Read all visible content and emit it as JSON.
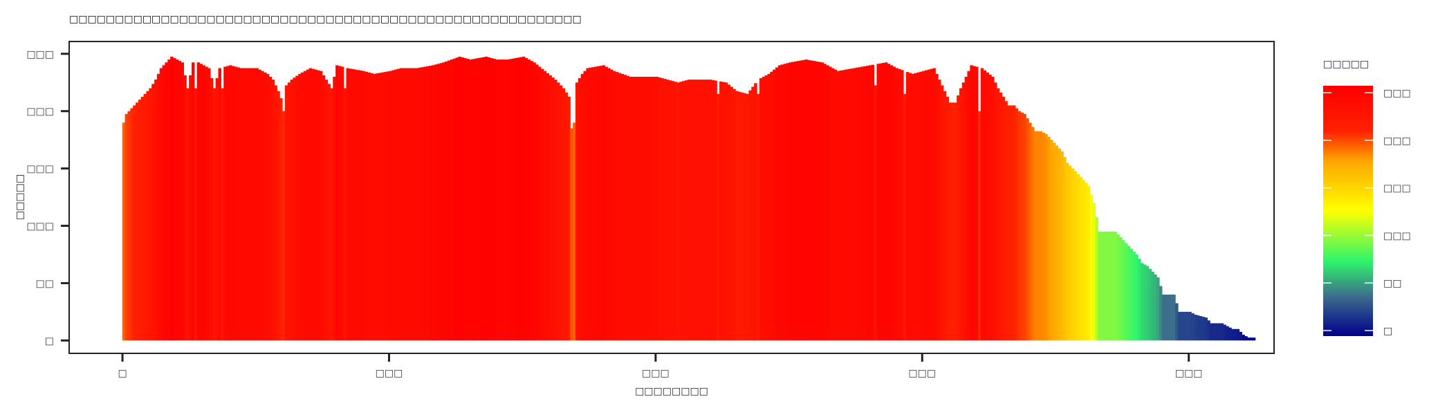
{
  "chart_data": {
    "type": "bar",
    "title": "□□□□□□□□□□□□□□□□□□□□□□□□□□□□□□□□□□□□□□□□□□□□□□□□□□□□□□□□",
    "xlabel": "□□□□□□□□",
    "ylabel": "□□□□□",
    "x_tick_labels": [
      "□",
      "□□□",
      "□□□",
      "□□□",
      "□□□"
    ],
    "x_tick_values": [
      0,
      100,
      200,
      300,
      400
    ],
    "xlim": [
      -20,
      432
    ],
    "y_tick_labels": [
      "□",
      "□□",
      "□□□",
      "□□□",
      "□□□",
      "□□□"
    ],
    "y_tick_values": [
      0,
      20,
      40,
      60,
      80,
      100
    ],
    "ylim": [
      -4.5,
      104.3
    ],
    "grid": false,
    "legend": {
      "title": "□□□□□",
      "placement": "right",
      "tick_labels": [
        "□□□",
        "□□□",
        "□□□",
        "□□□",
        "□□",
        "□"
      ],
      "tick_values": [
        100,
        80,
        60,
        40,
        20,
        0
      ],
      "colormap": [
        "#00008B",
        "#3D6E8B",
        "#2EF56B",
        "#FFFF00",
        "#FFA500",
        "#FF2000",
        "#FF0000"
      ]
    },
    "profile_knots": [
      [
        0,
        76
      ],
      [
        1,
        79
      ],
      [
        2,
        80
      ],
      [
        4,
        82
      ],
      [
        6,
        84
      ],
      [
        8,
        86
      ],
      [
        10,
        88
      ],
      [
        12,
        91
      ],
      [
        14,
        95
      ],
      [
        16,
        97
      ],
      [
        18,
        99
      ],
      [
        20,
        98
      ],
      [
        22,
        97
      ],
      [
        24,
        88
      ],
      [
        26,
        97
      ],
      [
        28,
        97
      ],
      [
        32,
        95
      ],
      [
        34,
        88
      ],
      [
        36,
        95
      ],
      [
        40,
        96
      ],
      [
        44,
        95
      ],
      [
        50,
        95
      ],
      [
        54,
        93
      ],
      [
        56,
        91
      ],
      [
        58,
        87
      ],
      [
        60,
        82
      ],
      [
        61,
        89
      ],
      [
        63,
        91
      ],
      [
        66,
        93
      ],
      [
        70,
        95
      ],
      [
        74,
        94
      ],
      [
        76,
        91
      ],
      [
        78,
        88
      ],
      [
        80,
        96
      ],
      [
        84,
        95
      ],
      [
        90,
        94
      ],
      [
        94,
        93
      ],
      [
        100,
        94
      ],
      [
        104,
        95
      ],
      [
        110,
        95
      ],
      [
        116,
        96
      ],
      [
        120,
        97
      ],
      [
        126,
        99
      ],
      [
        130,
        98
      ],
      [
        136,
        99
      ],
      [
        140,
        98
      ],
      [
        144,
        98
      ],
      [
        150,
        99
      ],
      [
        154,
        97
      ],
      [
        158,
        94
      ],
      [
        162,
        91
      ],
      [
        165,
        88
      ],
      [
        167,
        85
      ],
      [
        168,
        74
      ],
      [
        169,
        76
      ],
      [
        170,
        90
      ],
      [
        172,
        93
      ],
      [
        174,
        95
      ],
      [
        180,
        96
      ],
      [
        184,
        94
      ],
      [
        190,
        92
      ],
      [
        196,
        92
      ],
      [
        200,
        92
      ],
      [
        204,
        91
      ],
      [
        208,
        90
      ],
      [
        212,
        91
      ],
      [
        220,
        91
      ],
      [
        226,
        90
      ],
      [
        230,
        87
      ],
      [
        234,
        86
      ],
      [
        238,
        91
      ],
      [
        242,
        93
      ],
      [
        246,
        96
      ],
      [
        250,
        97
      ],
      [
        256,
        98
      ],
      [
        262,
        97
      ],
      [
        268,
        94
      ],
      [
        274,
        95
      ],
      [
        280,
        96
      ],
      [
        286,
        97
      ],
      [
        290,
        95
      ],
      [
        296,
        93
      ],
      [
        300,
        94
      ],
      [
        304,
        95
      ],
      [
        306,
        91
      ],
      [
        310,
        83
      ],
      [
        312,
        83
      ],
      [
        314,
        88
      ],
      [
        318,
        96
      ],
      [
        322,
        95
      ],
      [
        326,
        92
      ],
      [
        328,
        88
      ],
      [
        330,
        85
      ],
      [
        332,
        82
      ],
      [
        334,
        82
      ],
      [
        336,
        80
      ],
      [
        338,
        79
      ],
      [
        340,
        76
      ],
      [
        342,
        73
      ],
      [
        344,
        73
      ],
      [
        346,
        72
      ],
      [
        348,
        70
      ],
      [
        350,
        68
      ],
      [
        352,
        66
      ],
      [
        354,
        62
      ],
      [
        356,
        60
      ],
      [
        358,
        58
      ],
      [
        360,
        56
      ],
      [
        362,
        54
      ],
      [
        364,
        48
      ],
      [
        366,
        38
      ],
      [
        368,
        38
      ],
      [
        372,
        38
      ],
      [
        374,
        36
      ],
      [
        376,
        34
      ],
      [
        378,
        32
      ],
      [
        380,
        30
      ],
      [
        382,
        27
      ],
      [
        384,
        26
      ],
      [
        386,
        24
      ],
      [
        388,
        22
      ],
      [
        390,
        16
      ],
      [
        394,
        16
      ],
      [
        396,
        10
      ],
      [
        400,
        10
      ],
      [
        402,
        9
      ],
      [
        406,
        8
      ],
      [
        408,
        6
      ],
      [
        412,
        6
      ],
      [
        414,
        5
      ],
      [
        416,
        4
      ],
      [
        418,
        4
      ],
      [
        420,
        2
      ],
      [
        422,
        1
      ],
      [
        424,
        1
      ]
    ],
    "dips": [
      {
        "x": 27,
        "value": 88
      },
      {
        "x": 37,
        "value": 88
      },
      {
        "x": 83,
        "value": 88
      },
      {
        "x": 223,
        "value": 86
      },
      {
        "x": 238,
        "value": 86
      },
      {
        "x": 282,
        "value": 89
      },
      {
        "x": 293,
        "value": 86
      },
      {
        "x": 314,
        "value": 88
      }
    ],
    "orange_bars": [
      {
        "x": 0,
        "value": 76,
        "color": "#FF6200"
      },
      {
        "x": 60,
        "value": 80,
        "color": "#FF2600"
      },
      {
        "x": 168,
        "value": 74,
        "color": "#FF5200"
      },
      {
        "x": 321,
        "value": 80,
        "color": "#FF2A00"
      }
    ],
    "x_spacing": 1
  }
}
